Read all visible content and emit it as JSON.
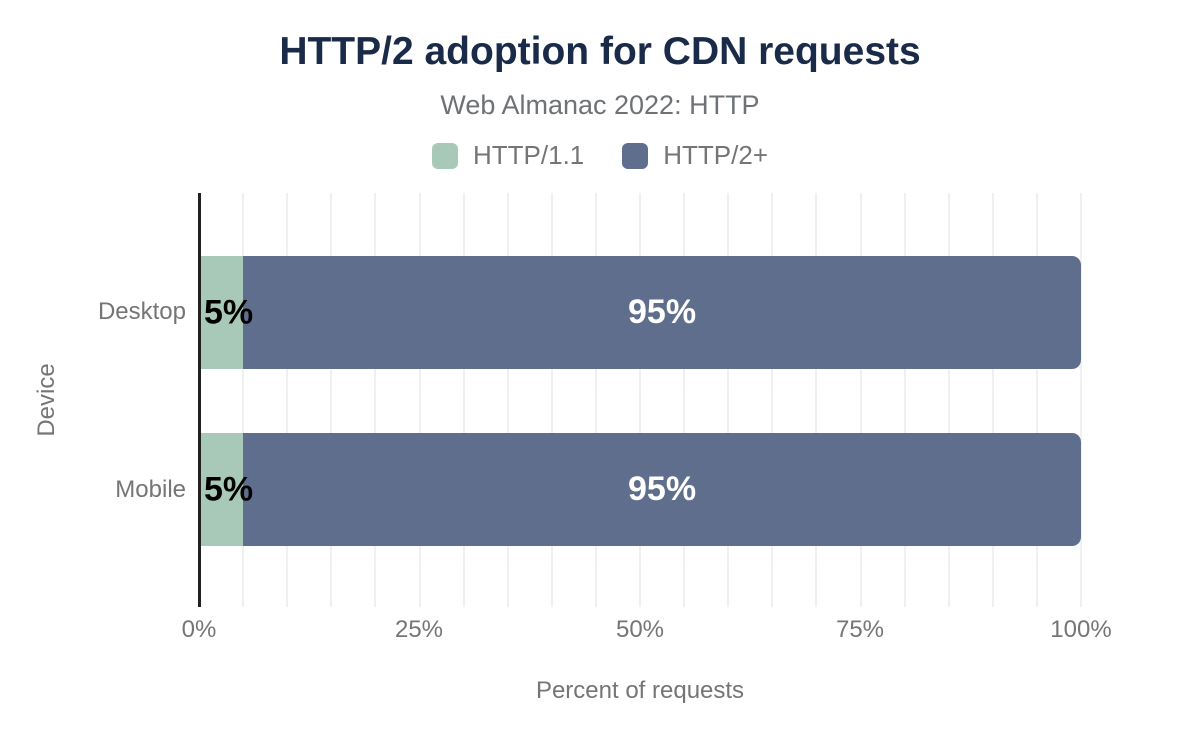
{
  "header": {
    "title": "HTTP/2 adoption for CDN requests",
    "subtitle": "Web Almanac 2022: HTTP"
  },
  "chart_data": {
    "type": "bar",
    "orientation": "horizontal",
    "stacked": true,
    "title": "HTTP/2 adoption for CDN requests",
    "subtitle": "Web Almanac 2022: HTTP",
    "categories": [
      "Desktop",
      "Mobile"
    ],
    "series": [
      {
        "name": "HTTP/1.1",
        "color": "#a9c9b8",
        "values": [
          5,
          5
        ],
        "labels": [
          "5%",
          "5%"
        ]
      },
      {
        "name": "HTTP/2+",
        "color": "#5f6e8c",
        "values": [
          95,
          95
        ],
        "labels": [
          "95%",
          "95%"
        ]
      }
    ],
    "xlabel": "Percent of requests",
    "ylabel": "Device",
    "xlim": [
      0,
      100
    ],
    "xticks": [
      "0%",
      "25%",
      "50%",
      "75%",
      "100%"
    ],
    "grid_interval_percent": 5,
    "grid_on": true,
    "legend_position": "top",
    "colors": {
      "title": "#1a2b49",
      "muted_text": "#757575",
      "axis_line": "#212121",
      "gridline": "#f0f0f0",
      "bar_label_on_light": "#000000",
      "bar_label_on_dark": "#ffffff",
      "background": "#ffffff"
    }
  }
}
